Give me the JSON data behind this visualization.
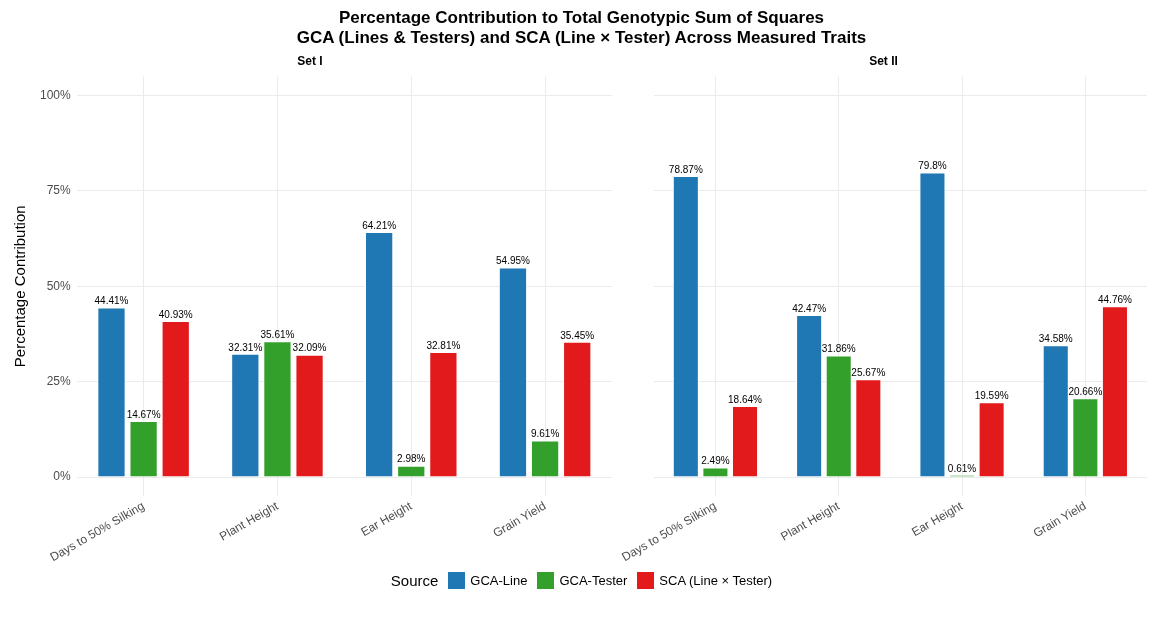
{
  "chart_data": [
    {
      "type": "bar",
      "title": "Percentage Contribution to Total Genotypic Sum of Squares",
      "subtitle": "GCA (Lines & Testers) and SCA (Line × Tester) Across Measured Traits",
      "annotations": [
        "Set I"
      ],
      "ylabel": "Percentage Contribution",
      "legend": "bottom",
      "legend_title": "Source",
      "grid": true,
      "categories": [
        "Days to 50% Silking",
        "Plant Height",
        "Ear Height",
        "Grain Yield"
      ],
      "ylim": [
        -5,
        105
      ],
      "yticks": [
        {
          "value": 0,
          "label": "0%"
        },
        {
          "value": 25,
          "label": "25%"
        },
        {
          "value": 50,
          "label": "50%"
        },
        {
          "value": 75,
          "label": "75%"
        },
        {
          "value": 100,
          "label": "100%"
        }
      ],
      "series": [
        {
          "name": "GCA-Line",
          "color": "#1f77b4",
          "values": [
            44.41,
            32.31,
            64.21,
            54.95
          ],
          "value_labels": [
            "44.41%",
            "32.31%",
            "64.21%",
            "54.95%"
          ]
        },
        {
          "name": "GCA-Tester",
          "color": "#33a02c",
          "values": [
            14.67,
            35.61,
            2.98,
            9.61
          ],
          "value_labels": [
            "14.67%",
            "35.61%",
            "2.98%",
            "9.61%"
          ]
        },
        {
          "name": "SCA (Line × Tester)",
          "color": "#e31a1c",
          "values": [
            40.93,
            32.09,
            32.81,
            35.45
          ],
          "value_labels": [
            "40.93%",
            "32.09%",
            "32.81%",
            "35.45%"
          ]
        }
      ]
    },
    {
      "type": "bar",
      "title": "Set II",
      "grid": true,
      "tick_labels": "x",
      "categories": [
        "Days to 50% Silking",
        "Plant Height",
        "Ear Height",
        "Grain Yield"
      ],
      "ylim": [
        -5,
        105
      ],
      "yticks": [
        {
          "value": 0,
          "label": null
        },
        {
          "value": 25,
          "label": null
        },
        {
          "value": 50,
          "label": null
        },
        {
          "value": 75,
          "label": null
        },
        {
          "value": 100,
          "label": null
        }
      ],
      "series": [
        {
          "color": "#1f77b4",
          "values": [
            78.87,
            42.47,
            79.8,
            34.58
          ],
          "value_labels": [
            "78.87%",
            "42.47%",
            "79.8%",
            "34.58%"
          ]
        },
        {
          "color": "#33a02c",
          "values": [
            2.49,
            31.86,
            0.61,
            20.66
          ],
          "value_labels": [
            "2.49%",
            "31.86%",
            "0.61%",
            "20.66%"
          ]
        },
        {
          "color": "#e31a1c",
          "values": [
            18.64,
            25.67,
            19.59,
            44.76
          ],
          "value_labels": [
            "18.64%",
            "25.67%",
            "19.59%",
            "44.76%"
          ]
        }
      ]
    }
  ]
}
